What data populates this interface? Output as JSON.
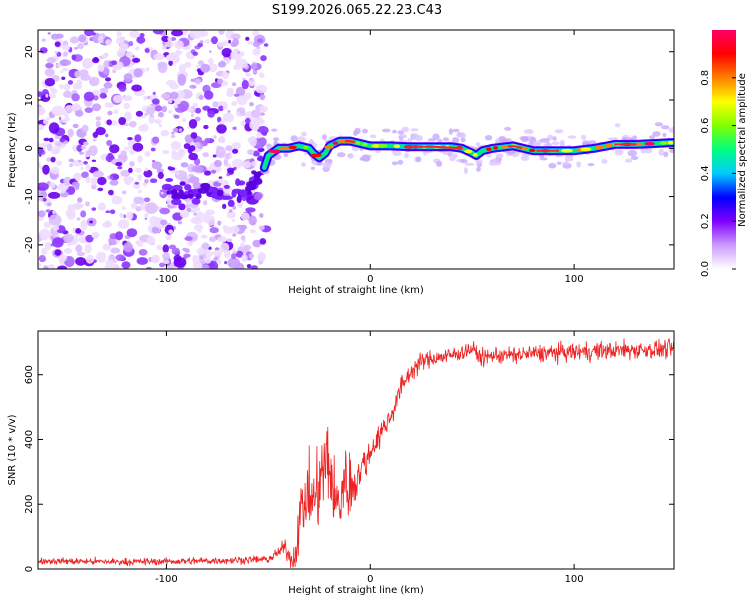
{
  "title": "S199.2026.065.22.23.C43",
  "chart_data": [
    {
      "type": "heatmap",
      "name": "spectrogram",
      "xlabel": "Height of straight line (km)",
      "ylabel": "Frequency (Hz)",
      "xlim": [
        -163,
        149
      ],
      "ylim": [
        -25,
        24.5
      ],
      "xticks": [
        -100,
        0,
        100
      ],
      "xtick_labels": [
        "-100",
        "0",
        "100"
      ],
      "yticks": [
        -20,
        -10,
        0,
        10,
        20
      ],
      "ytick_labels": [
        "-20",
        "-10",
        "0",
        "10",
        "20"
      ],
      "noise_region_x": [
        -163,
        -51
      ],
      "noise_lane": {
        "x": [
          -100,
          -95,
          -90,
          -85,
          -80,
          -75,
          -70,
          -65,
          -60,
          -55,
          -52
        ],
        "y": [
          -8,
          -9,
          -10,
          -9.5,
          -9,
          -9.5,
          -10,
          -9.5,
          -8,
          -6,
          -4
        ]
      },
      "signal_ridge": {
        "x": [
          -52,
          -50,
          -45,
          -40,
          -35,
          -30,
          -28,
          -25,
          -22,
          -20,
          -15,
          -10,
          -5,
          0,
          10,
          20,
          30,
          40,
          45,
          50,
          52,
          55,
          60,
          70,
          80,
          90,
          100,
          110,
          120,
          130,
          140,
          149
        ],
        "y": [
          -4,
          -1.5,
          0,
          0,
          0.5,
          0,
          -1,
          -2,
          -1,
          0.5,
          1.5,
          1.5,
          1,
          0.5,
          0.5,
          0.3,
          0.3,
          0.3,
          0,
          -1,
          -1.5,
          -0.5,
          0,
          0.5,
          -0.5,
          -0.5,
          -0.5,
          0,
          0.8,
          0.8,
          1,
          1.2
        ]
      },
      "colorbar": {
        "label": "Normalized spectral amplitude",
        "ticks": [
          0.0,
          0.2,
          0.4,
          0.6,
          0.8
        ],
        "tick_labels": [
          "0.0",
          "0.2",
          "0.4",
          "0.6",
          "0.8"
        ],
        "range": [
          0,
          1
        ],
        "colormap": [
          "#ffffff",
          "#cc99ff",
          "#8000ff",
          "#0000ff",
          "#00ccff",
          "#00ff80",
          "#80ff00",
          "#ffff00",
          "#ff8000",
          "#ff0000",
          "#ff0066"
        ]
      }
    },
    {
      "type": "line",
      "name": "snr",
      "xlabel": "Height of straight line (km)",
      "ylabel": "SNR (10 * v/v)",
      "xlim": [
        -163,
        149
      ],
      "ylim": [
        0,
        735
      ],
      "xticks": [
        -100,
        0,
        100
      ],
      "xtick_labels": [
        "-100",
        "0",
        "100"
      ],
      "yticks": [
        0,
        200,
        400,
        600
      ],
      "ytick_labels": [
        "0",
        "200",
        "400",
        "600"
      ],
      "color": "#ee2222",
      "envelope": {
        "x": [
          -163,
          -120,
          -80,
          -50,
          -45,
          -42,
          -40,
          -37,
          -35,
          -30,
          -27,
          -25,
          -22,
          -20,
          -17,
          -15,
          -13,
          -10,
          -5,
          0,
          5,
          10,
          15,
          20,
          25,
          30,
          40,
          50,
          55,
          60,
          70,
          80,
          100,
          120,
          149
        ],
        "y": [
          25,
          22,
          25,
          30,
          50,
          70,
          40,
          30,
          160,
          230,
          210,
          260,
          330,
          320,
          190,
          200,
          280,
          250,
          300,
          360,
          420,
          470,
          560,
          610,
          640,
          650,
          660,
          680,
          650,
          660,
          660,
          665,
          670,
          675,
          680
        ]
      },
      "noise_amplitude": {
        "x": [
          -163,
          -50,
          -40,
          -35,
          -20,
          -10,
          0,
          20,
          30,
          149
        ],
        "y": [
          10,
          12,
          25,
          90,
          140,
          100,
          40,
          30,
          25,
          30
        ]
      }
    }
  ]
}
